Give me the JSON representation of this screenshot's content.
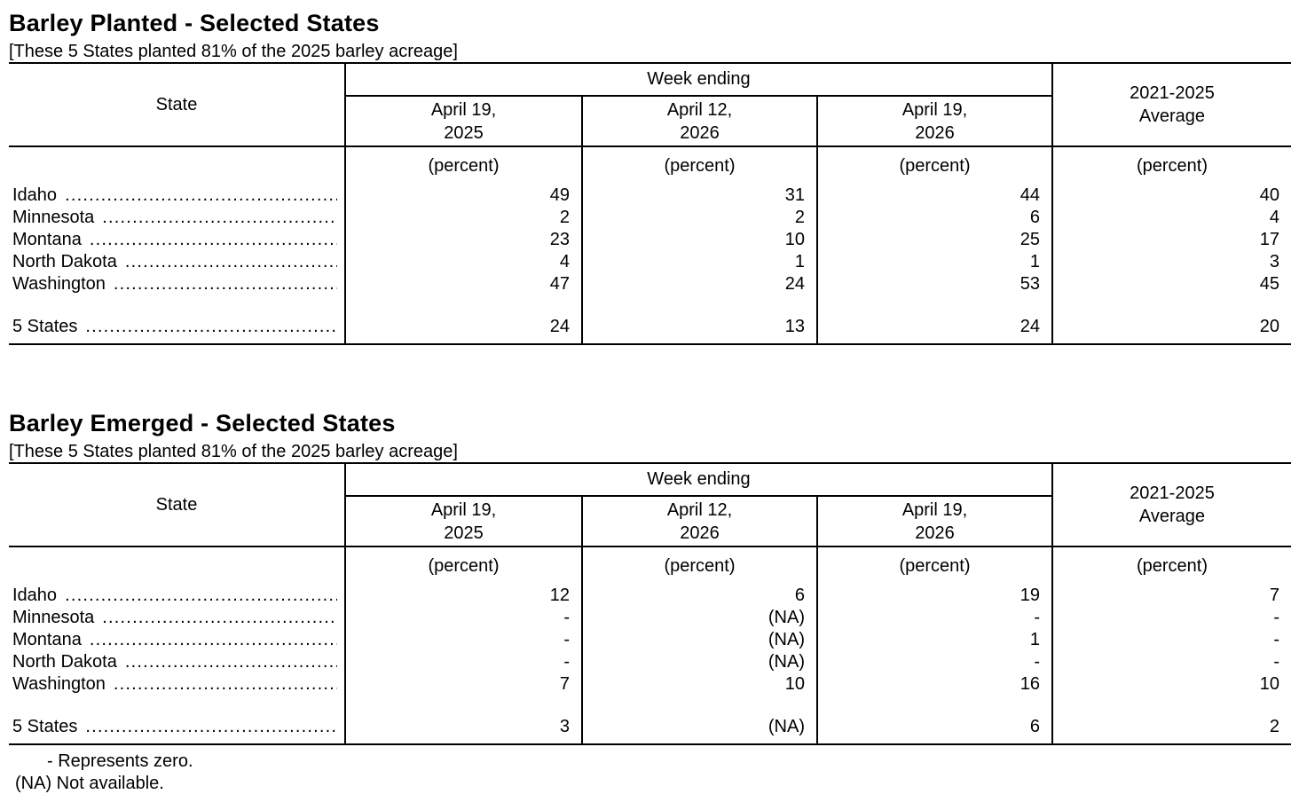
{
  "tables": [
    {
      "title": "Barley Planted - Selected States",
      "subtitle": "[These 5 States planted 81% of the 2025 barley acreage]",
      "state_header": "State",
      "group_header": "Week ending",
      "columns": [
        {
          "line1": "April 19,",
          "line2": "2025"
        },
        {
          "line1": "April 12,",
          "line2": "2026"
        },
        {
          "line1": "April 19,",
          "line2": "2026"
        }
      ],
      "average_column": {
        "line1": "2021-2025",
        "line2": "Average"
      },
      "unit": "(percent)",
      "rows": [
        {
          "state": "Idaho",
          "values": [
            "49",
            "31",
            "44",
            "40"
          ]
        },
        {
          "state": "Minnesota",
          "values": [
            "2",
            "2",
            "6",
            "4"
          ]
        },
        {
          "state": "Montana",
          "values": [
            "23",
            "10",
            "25",
            "17"
          ]
        },
        {
          "state": "North Dakota",
          "values": [
            "4",
            "1",
            "1",
            "3"
          ]
        },
        {
          "state": "Washington",
          "values": [
            "47",
            "24",
            "53",
            "45"
          ]
        },
        {
          "state": "5 States",
          "values": [
            "24",
            "13",
            "24",
            "20"
          ]
        }
      ]
    },
    {
      "title": "Barley Emerged - Selected States",
      "subtitle": "[These 5 States planted 81% of the 2025 barley acreage]",
      "state_header": "State",
      "group_header": "Week ending",
      "columns": [
        {
          "line1": "April 19,",
          "line2": "2025"
        },
        {
          "line1": "April 12,",
          "line2": "2026"
        },
        {
          "line1": "April 19,",
          "line2": "2026"
        }
      ],
      "average_column": {
        "line1": "2021-2025",
        "line2": "Average"
      },
      "unit": "(percent)",
      "rows": [
        {
          "state": "Idaho",
          "values": [
            "12",
            "6",
            "19",
            "7"
          ]
        },
        {
          "state": "Minnesota",
          "values": [
            "-",
            "(NA)",
            "-",
            "-"
          ]
        },
        {
          "state": "Montana",
          "values": [
            "-",
            "(NA)",
            "1",
            "-"
          ]
        },
        {
          "state": "North Dakota",
          "values": [
            "-",
            "(NA)",
            "-",
            "-"
          ]
        },
        {
          "state": "Washington",
          "values": [
            "7",
            "10",
            "16",
            "10"
          ]
        },
        {
          "state": "5 States",
          "values": [
            "3",
            "(NA)",
            "6",
            "2"
          ]
        }
      ]
    }
  ],
  "footnotes": [
    "- Represents zero.",
    "(NA) Not available."
  ],
  "colors": {
    "text": "#000000",
    "background": "#ffffff",
    "border": "#000000"
  }
}
